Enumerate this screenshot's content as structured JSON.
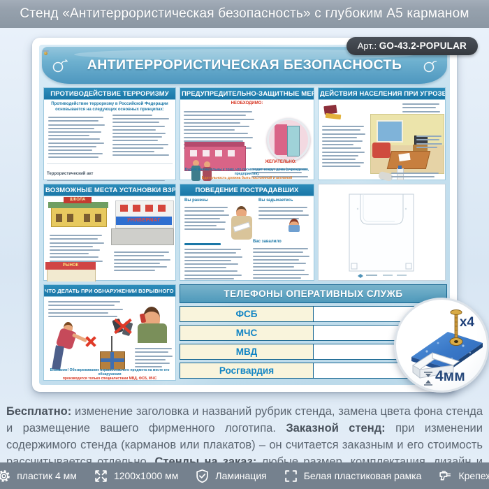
{
  "page_title": "Стенд «Антитеррористическая безопасность» с глубоким А5 карманом",
  "art": {
    "label": "Арт.:",
    "code": "GO-43.2-POPULAR"
  },
  "poster": {
    "title": "АНТИТЕРРОРИСТИЧЕСКАЯ БЕЗОПАСНОСТЬ",
    "sections": {
      "counteraction": {
        "title": "ПРОТИВОДЕЙСТВИЕ ТЕРРОРИЗМУ",
        "subtitle": "Противодействие терроризму в Российской Федерации основывается на следующих основных принципах:",
        "footnote_lead": "Террористический акт"
      },
      "protective": {
        "title": "ПРЕДУПРЕДИТЕЛЬНО-ЗАЩИТНЫЕ МЕРЫ",
        "necessary": "НЕОБХОДИМО:",
        "desirable": "ЖЕЛАТЕЛЬНО:",
        "footer1": "Будьте внимательны к тому, что происходит вокруг дома (учреждения, предприятия).",
        "footer2": "Бдительность должна быть постоянной и активной"
      },
      "actions": {
        "title": "ДЕЙСТВИЯ НАСЕЛЕНИЯ ПРИ УГРОЗЕ ТЕРАКТА"
      },
      "places": {
        "title": "ВОЗМОЖНЫЕ МЕСТА УСТАНОВКИ ВЗРЫВНЫХ УСТРОЙСТВ",
        "sign_school": "ШКОЛА",
        "sign_store": "УНИВЕРМАГ",
        "sign_market": "РЫНОК"
      },
      "victims": {
        "title": "ПОВЕДЕНИЕ ПОСТРАДАВШИХ",
        "sub_wounded": "Вы ранены",
        "sub_choking": "Вы задыхаетесь",
        "sub_buried": "Вас завалило"
      },
      "found": {
        "title": "ЧТО ДЕЛАТЬ ПРИ ОБНАРУЖЕНИИ ВЗРЫВНОГО УСТРОЙСТВА",
        "footer1": "Внимание! Обезвреживание взрывоопасного предмета на месте его обнаружения",
        "footer2": "производится только специалистами МВД, ФСБ, МЧС"
      }
    },
    "phones": {
      "title": "ТЕЛЕФОНЫ ОПЕРАТИВНЫХ СЛУЖБ",
      "rows": [
        "ФСБ",
        "МЧС",
        "МВД",
        "Росгвардия"
      ]
    }
  },
  "inset": {
    "screw_count": "x4",
    "thickness": "4мм"
  },
  "description": {
    "b1": "Бесплатно:",
    "t1": " изменение заголовка и названий рубрик стенда, замена цвета фона стенда и размещение вашего фирменного логотипа. ",
    "b2": "Заказной стенд:",
    "t2": " при изменении содержимого стенда (карманов или плакатов) – он считается заказным и его стоимость рассчитывается отдельно. ",
    "b3": "Стенды на заказ:",
    "t3": " любые размер, комплектация, дизайн и оформление. На все изготовленные стенды даем 2 года гарантии. Выгодно, эстетично и надежно!"
  },
  "footer": {
    "items": [
      {
        "icon": "gear-icon",
        "label": "пластик 4 мм"
      },
      {
        "icon": "dimensions-icon",
        "label": "1200х1000 мм"
      },
      {
        "icon": "lamination-shield-icon",
        "label": "Ламинация"
      },
      {
        "icon": "frame-icon",
        "label": "Белая пластиковая рамка"
      },
      {
        "icon": "fastener-drill-icon",
        "label": "Крепеж"
      }
    ]
  },
  "colors": {
    "titlebar": "#8b97a3",
    "board_blue": "#4e97bf",
    "section_header_blue": "#1a77a7",
    "phones_cream": "#f9f4dc",
    "phones_text_blue": "#1285c4",
    "accent_red": "#d6331f",
    "bottombar_gray": "#75818e"
  }
}
